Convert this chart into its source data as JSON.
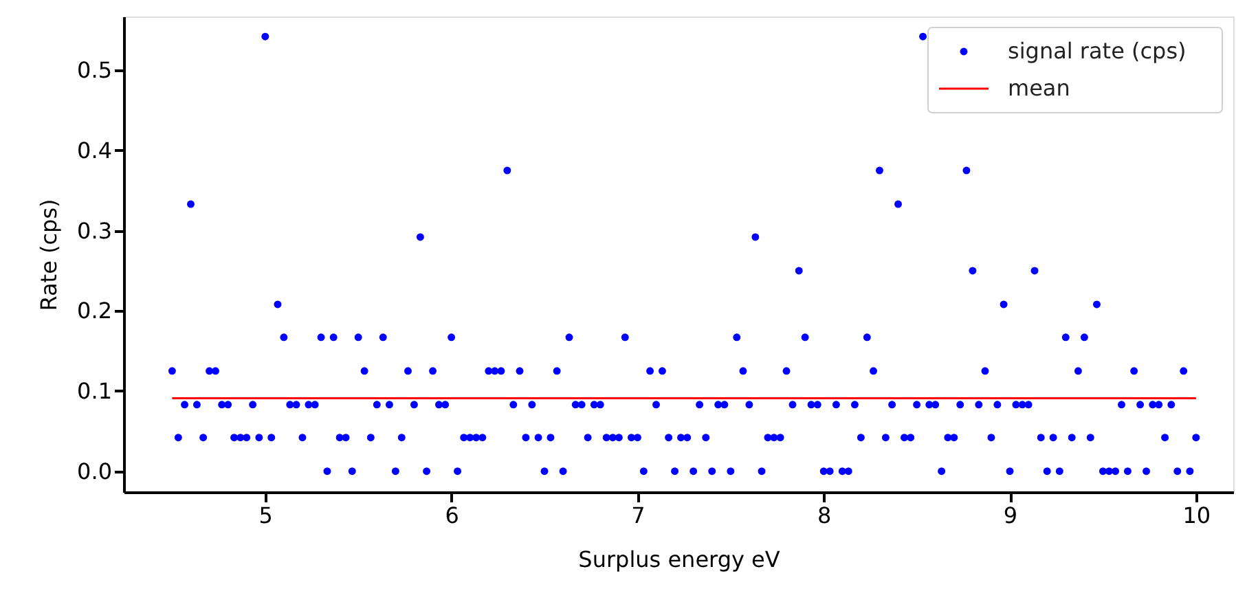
{
  "chart_data": {
    "type": "scatter",
    "xlabel": "Surplus energy eV",
    "ylabel": "Rate (cps)",
    "xlim": [
      4.24,
      10.2
    ],
    "xticks": [
      5,
      6,
      7,
      8,
      9,
      10
    ],
    "ylim": [
      -0.026,
      0.567
    ],
    "yticks": [
      {
        "value": 0,
        "label": "0.0"
      },
      {
        "value": 0.1,
        "label": "0.1"
      },
      {
        "value": 0.2,
        "label": "0.2"
      },
      {
        "value": 0.3,
        "label": "0.3"
      },
      {
        "value": 0.4,
        "label": "0.4"
      },
      {
        "value": 0.5,
        "label": "0.5"
      }
    ],
    "grid": false,
    "legend": "top right",
    "marker": "circle",
    "series": [
      {
        "name": "signal rate (cps)",
        "color": "#0000ff",
        "x": [
          4.5,
          4.533,
          4.567,
          4.6,
          4.633,
          4.667,
          4.7,
          4.733,
          4.767,
          4.8,
          4.833,
          4.867,
          4.9,
          4.933,
          4.967,
          5,
          5.033,
          5.067,
          5.1,
          5.133,
          5.167,
          5.2,
          5.233,
          5.267,
          5.3,
          5.333,
          5.367,
          5.4,
          5.433,
          5.467,
          5.5,
          5.533,
          5.567,
          5.6,
          5.633,
          5.667,
          5.7,
          5.733,
          5.767,
          5.8,
          5.833,
          5.867,
          5.9,
          5.933,
          5.967,
          6,
          6.033,
          6.067,
          6.1,
          6.133,
          6.167,
          6.2,
          6.233,
          6.267,
          6.3,
          6.333,
          6.367,
          6.4,
          6.433,
          6.467,
          6.5,
          6.533,
          6.567,
          6.6,
          6.633,
          6.667,
          6.7,
          6.733,
          6.767,
          6.8,
          6.833,
          6.867,
          6.9,
          6.933,
          6.967,
          7,
          7.033,
          7.067,
          7.1,
          7.133,
          7.167,
          7.2,
          7.233,
          7.267,
          7.3,
          7.333,
          7.367,
          7.4,
          7.433,
          7.467,
          7.5,
          7.533,
          7.567,
          7.6,
          7.633,
          7.667,
          7.7,
          7.733,
          7.767,
          7.8,
          7.833,
          7.867,
          7.9,
          7.933,
          7.967,
          8,
          8.033,
          8.067,
          8.1,
          8.133,
          8.167,
          8.2,
          8.233,
          8.267,
          8.3,
          8.333,
          8.367,
          8.4,
          8.433,
          8.467,
          8.5,
          8.533,
          8.567,
          8.6,
          8.633,
          8.667,
          8.7,
          8.733,
          8.767,
          8.8,
          8.833,
          8.867,
          8.9,
          8.933,
          8.967,
          9,
          9.033,
          9.067,
          9.1,
          9.133,
          9.167,
          9.2,
          9.233,
          9.267,
          9.3,
          9.333,
          9.367,
          9.4,
          9.433,
          9.467,
          9.5,
          9.533,
          9.567,
          9.6,
          9.633,
          9.667,
          9.7,
          9.733,
          9.767,
          9.8,
          9.833,
          9.867,
          9.9,
          9.933,
          9.967,
          10
        ],
        "values": [
          0.125,
          0.042,
          0.083,
          0.333,
          0.083,
          0.042,
          0.125,
          0.125,
          0.083,
          0.083,
          0.042,
          0.042,
          0.042,
          0.083,
          0.042,
          0.542,
          0.042,
          0.208,
          0.167,
          0.083,
          0.083,
          0.042,
          0.083,
          0.083,
          0.167,
          0,
          0.167,
          0.042,
          0.042,
          0,
          0.167,
          0.125,
          0.042,
          0.083,
          0.167,
          0.083,
          0,
          0.042,
          0.125,
          0.083,
          0.292,
          0,
          0.125,
          0.083,
          0.083,
          0.167,
          0,
          0.042,
          0.042,
          0.042,
          0.042,
          0.125,
          0.125,
          0.125,
          0.375,
          0.083,
          0.125,
          0.042,
          0.083,
          0.042,
          0,
          0.042,
          0.125,
          0,
          0.167,
          0.083,
          0.083,
          0.042,
          0.083,
          0.083,
          0.042,
          0.042,
          0.042,
          0.167,
          0.042,
          0.042,
          0,
          0.125,
          0.083,
          0.125,
          0.042,
          0,
          0.042,
          0.042,
          0,
          0.083,
          0.042,
          0,
          0.083,
          0.083,
          0,
          0.167,
          0.125,
          0.083,
          0.292,
          0,
          0.042,
          0.042,
          0.042,
          0.125,
          0.083,
          0.25,
          0.167,
          0.083,
          0.083,
          0,
          0,
          0.083,
          0,
          0,
          0.083,
          0.042,
          0.167,
          0.125,
          0.375,
          0.042,
          0.083,
          0.333,
          0.042,
          0.042,
          0.083,
          0.542,
          0.083,
          0.083,
          0,
          0.042,
          0.042,
          0.083,
          0.375,
          0.25,
          0.083,
          0.125,
          0.042,
          0.083,
          0.208,
          0,
          0.083,
          0.083,
          0.083,
          0.25,
          0.042,
          0,
          0.042,
          0,
          0.167,
          0.042,
          0.125,
          0.167,
          0.042,
          0.208,
          0,
          0,
          0,
          0.083,
          0,
          0.125,
          0.083,
          0,
          0.083,
          0.083,
          0.042,
          0.083,
          0,
          0.125,
          0,
          0.042
        ]
      },
      {
        "name": "mean",
        "type": "line",
        "color": "#ff0000",
        "line_style": "solid",
        "marker": "none",
        "x": [
          4.5,
          10
        ],
        "values": [
          0.091,
          0.091
        ]
      }
    ]
  }
}
